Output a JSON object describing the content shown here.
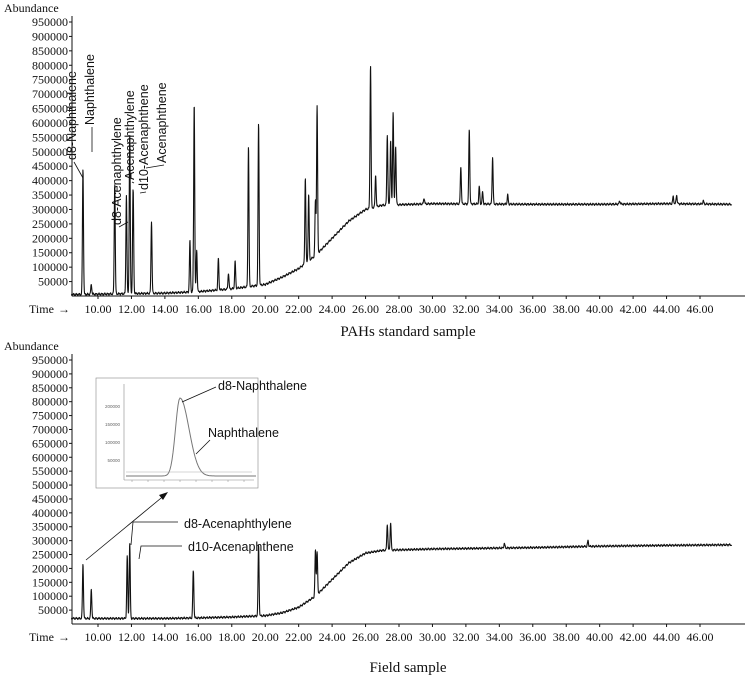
{
  "chart_data": [
    {
      "type": "line",
      "caption": "PAHs standard sample",
      "ylabel": "Abundance",
      "xlabel": "Time",
      "xlim": [
        8.3,
        48.0
      ],
      "ylim": [
        0,
        950000
      ],
      "x_ticks": [
        "10.00",
        "12.00",
        "14.00",
        "16.00",
        "18.00",
        "20.00",
        "22.00",
        "24.00",
        "26.00",
        "28.00",
        "30.00",
        "32.00",
        "34.00",
        "36.00",
        "38.00",
        "40.00",
        "42.00",
        "44.00",
        "46.00"
      ],
      "y_ticks": [
        "50000",
        "100000",
        "150000",
        "200000",
        "250000",
        "300000",
        "350000",
        "400000",
        "450000",
        "500000",
        "550000",
        "600000",
        "650000",
        "700000",
        "750000",
        "800000",
        "850000",
        "900000",
        "950000"
      ],
      "baseline": [
        [
          8.3,
          5000
        ],
        [
          14,
          10000
        ],
        [
          16,
          15000
        ],
        [
          18,
          25000
        ],
        [
          20,
          40000
        ],
        [
          21,
          65000
        ],
        [
          22,
          95000
        ],
        [
          23,
          140000
        ],
        [
          24,
          200000
        ],
        [
          25,
          260000
        ],
        [
          26,
          300000
        ],
        [
          27,
          315000
        ],
        [
          30,
          320000
        ],
        [
          36,
          318000
        ],
        [
          40,
          318000
        ],
        [
          44,
          320000
        ],
        [
          48,
          318000
        ]
      ],
      "peaks": [
        [
          9.1,
          440000
        ],
        [
          9.6,
          40000
        ],
        [
          11.0,
          390000
        ],
        [
          11.7,
          350000
        ],
        [
          11.9,
          560000
        ],
        [
          12.1,
          370000
        ],
        [
          13.2,
          260000
        ],
        [
          15.5,
          190000
        ],
        [
          15.75,
          670000
        ],
        [
          15.9,
          160000
        ],
        [
          17.2,
          130000
        ],
        [
          17.8,
          80000
        ],
        [
          18.2,
          120000
        ],
        [
          19.0,
          520000
        ],
        [
          19.6,
          600000
        ],
        [
          22.4,
          410000
        ],
        [
          22.6,
          350000
        ],
        [
          23.0,
          330000
        ],
        [
          23.1,
          660000
        ],
        [
          26.3,
          800000
        ],
        [
          26.6,
          420000
        ],
        [
          27.3,
          560000
        ],
        [
          27.5,
          540000
        ],
        [
          27.65,
          640000
        ],
        [
          27.8,
          520000
        ],
        [
          29.5,
          340000
        ],
        [
          31.7,
          450000
        ],
        [
          32.2,
          580000
        ],
        [
          32.8,
          380000
        ],
        [
          33.0,
          360000
        ],
        [
          33.6,
          480000
        ],
        [
          34.5,
          350000
        ],
        [
          41.2,
          330000
        ],
        [
          44.4,
          345000
        ],
        [
          44.6,
          350000
        ],
        [
          46.2,
          330000
        ]
      ],
      "labels": [
        {
          "text": "d8-Naphthalene",
          "x": 9.1
        },
        {
          "text": "Naphthalene",
          "x": 9.15
        },
        {
          "text": "d8-Acenaphthylene",
          "x": 11.7
        },
        {
          "text": "Acenaphthylene",
          "x": 11.9
        },
        {
          "text": "d10-Acenaphthene",
          "x": 12.1
        },
        {
          "text": "Acenaphthene",
          "x": 12.2
        }
      ]
    },
    {
      "type": "line",
      "caption": "Field sample",
      "ylabel": "Abundance",
      "xlabel": "Time",
      "xlim": [
        8.3,
        48.0
      ],
      "ylim": [
        0,
        950000
      ],
      "x_ticks": [
        "10.00",
        "12.00",
        "14.00",
        "16.00",
        "18.00",
        "20.00",
        "22.00",
        "24.00",
        "26.00",
        "28.00",
        "30.00",
        "32.00",
        "34.00",
        "36.00",
        "38.00",
        "40.00",
        "42.00",
        "44.00",
        "46.00"
      ],
      "y_ticks": [
        "50000",
        "100000",
        "150000",
        "200000",
        "250000",
        "300000",
        "350000",
        "400000",
        "450000",
        "500000",
        "550000",
        "600000",
        "650000",
        "700000",
        "750000",
        "800000",
        "850000",
        "900000",
        "950000"
      ],
      "baseline": [
        [
          8.3,
          20000
        ],
        [
          14,
          20000
        ],
        [
          16,
          22000
        ],
        [
          18,
          25000
        ],
        [
          20,
          30000
        ],
        [
          21,
          40000
        ],
        [
          22,
          60000
        ],
        [
          23,
          100000
        ],
        [
          24,
          160000
        ],
        [
          25,
          220000
        ],
        [
          26,
          255000
        ],
        [
          27,
          265000
        ],
        [
          30,
          270000
        ],
        [
          36,
          275000
        ],
        [
          40,
          280000
        ],
        [
          44,
          283000
        ],
        [
          48,
          285000
        ]
      ],
      "peaks": [
        [
          9.1,
          215000
        ],
        [
          9.6,
          125000
        ],
        [
          11.75,
          245000
        ],
        [
          11.9,
          290000
        ],
        [
          15.7,
          190000
        ],
        [
          19.6,
          285000
        ],
        [
          23.0,
          265000
        ],
        [
          23.1,
          260000
        ],
        [
          27.3,
          360000
        ],
        [
          27.5,
          365000
        ],
        [
          34.3,
          290000
        ],
        [
          39.3,
          300000
        ]
      ],
      "labels": [
        {
          "text": "d8-Acenaphthylene",
          "x": 11.75
        },
        {
          "text": "d10-Acenaphthene",
          "x": 11.9
        }
      ],
      "inset": {
        "labels": [
          "d8-Naphthalene",
          "Naphthalene"
        ],
        "y_ticks": [
          "200000",
          "150000",
          "100000",
          "50000"
        ]
      }
    }
  ]
}
